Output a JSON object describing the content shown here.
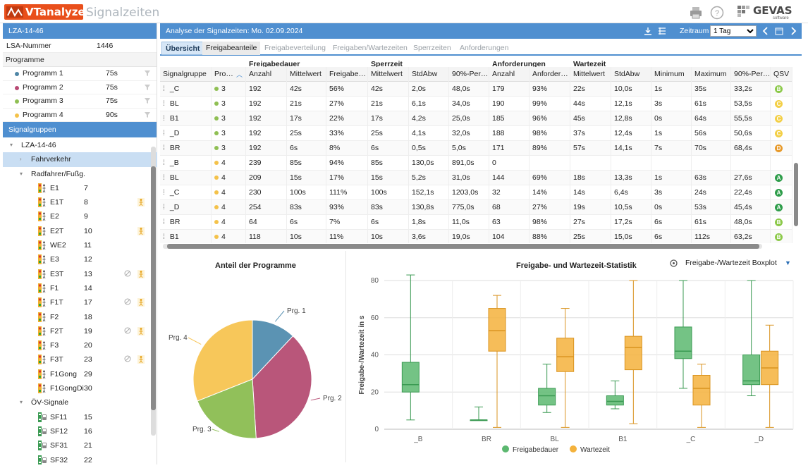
{
  "app": {
    "logo": "VTanalyzer",
    "subtitle": "Signalzeiten",
    "vendor": "GEVAS",
    "vendor_sub": "software",
    "icons": [
      "printer-icon",
      "help-icon"
    ]
  },
  "left": {
    "header": "LZA-14-46",
    "lsa_label": "LSA-Nummer",
    "lsa_value": "1446",
    "programs_header": "Programme",
    "programs": [
      {
        "name": "Programm 1",
        "value": "75s",
        "color": "#4f86a6"
      },
      {
        "name": "Programm 2",
        "value": "75s",
        "color": "#b84a74"
      },
      {
        "name": "Programm 3",
        "value": "75s",
        "color": "#8fbf53"
      },
      {
        "name": "Programm 4",
        "value": "90s",
        "color": "#f4c24a"
      }
    ],
    "groups_header": "Signalgruppen",
    "tree": [
      {
        "label": "LZA-14-46",
        "level": 0,
        "expand": "▾"
      },
      {
        "label": "Fahrverkehr",
        "level": 1,
        "expand": "›",
        "selected": true
      },
      {
        "label": "Radfahrer/Fußg.",
        "level": 1,
        "expand": "▾"
      },
      {
        "label": "E1",
        "num": "7",
        "level": 2,
        "icon": "ped"
      },
      {
        "label": "E1T",
        "num": "8",
        "level": 2,
        "icon": "ped",
        "x2": true
      },
      {
        "label": "E2",
        "num": "9",
        "level": 2,
        "icon": "ped"
      },
      {
        "label": "E2T",
        "num": "10",
        "level": 2,
        "icon": "ped",
        "x2": true
      },
      {
        "label": "WE2",
        "num": "11",
        "level": 2,
        "icon": "ped"
      },
      {
        "label": "E3",
        "num": "12",
        "level": 2,
        "icon": "ped"
      },
      {
        "label": "E3T",
        "num": "13",
        "level": 2,
        "icon": "ped",
        "x1": true,
        "x2": true
      },
      {
        "label": "F1",
        "num": "14",
        "level": 2,
        "icon": "ped"
      },
      {
        "label": "F1T",
        "num": "17",
        "level": 2,
        "icon": "ped",
        "x1": true,
        "x2": true
      },
      {
        "label": "F2",
        "num": "18",
        "level": 2,
        "icon": "ped"
      },
      {
        "label": "F2T",
        "num": "19",
        "level": 2,
        "icon": "ped",
        "x1": true,
        "x2": true
      },
      {
        "label": "F3",
        "num": "20",
        "level": 2,
        "icon": "ped"
      },
      {
        "label": "F3T",
        "num": "23",
        "level": 2,
        "icon": "ped",
        "x1": true,
        "x2": true
      },
      {
        "label": "F1Gong",
        "num": "29",
        "level": 2,
        "icon": "ped"
      },
      {
        "label": "F1GongDi",
        "num": "30",
        "level": 2,
        "icon": "ped"
      },
      {
        "label": "ÖV-Signale",
        "level": 1,
        "expand": "▾"
      },
      {
        "label": "SF11",
        "num": "15",
        "level": 2,
        "icon": "bus"
      },
      {
        "label": "SF12",
        "num": "16",
        "level": 2,
        "icon": "bus"
      },
      {
        "label": "SF31",
        "num": "21",
        "level": 2,
        "icon": "bus"
      },
      {
        "label": "SF32",
        "num": "22",
        "level": 2,
        "icon": "bus"
      }
    ]
  },
  "right": {
    "header": "Analyse der Signalzeiten: Mo. 02.09.2024",
    "zeitraum_label": "Zeitraum",
    "zeitraum_value": "1 Tag",
    "tabs": [
      "Übersicht",
      "Freigabeanteile",
      "Freigabeverteilung",
      "Freigaben/Wartezeiten",
      "Sperrzeiten",
      "Anforderungen"
    ],
    "group_headers": [
      "Freigabedauer",
      "Sperrzeit",
      "Anforderungen",
      "Wartezeit"
    ],
    "columns": [
      "Signalgruppe",
      "Pro…",
      "Anzahl",
      "Mittelwert",
      "Freigabe…",
      "Mittelwert",
      "StdAbw",
      "90%-Per…",
      "Anzahl",
      "Anforder…",
      "Mittelwert",
      "StdAbw",
      "Minimum",
      "Maximum",
      "90%-Per…",
      "QSV"
    ],
    "rows": [
      [
        "_C",
        "3",
        "192",
        "42s",
        "56%",
        "42s",
        "2,0s",
        "48,0s",
        "179",
        "93%",
        "22s",
        "10,0s",
        "1s",
        "35s",
        "33,2s",
        "B"
      ],
      [
        "BL",
        "3",
        "192",
        "21s",
        "27%",
        "21s",
        "6,1s",
        "34,0s",
        "190",
        "99%",
        "44s",
        "12,1s",
        "3s",
        "61s",
        "53,5s",
        "C"
      ],
      [
        "B1",
        "3",
        "192",
        "17s",
        "22%",
        "17s",
        "4,2s",
        "25,0s",
        "185",
        "96%",
        "45s",
        "12,8s",
        "0s",
        "64s",
        "55,5s",
        "C"
      ],
      [
        "_D",
        "3",
        "192",
        "25s",
        "33%",
        "25s",
        "4,1s",
        "32,0s",
        "188",
        "98%",
        "37s",
        "12,4s",
        "1s",
        "56s",
        "50,6s",
        "C"
      ],
      [
        "BR",
        "3",
        "192",
        "6s",
        "8%",
        "6s",
        "0,5s",
        "5,0s",
        "171",
        "89%",
        "57s",
        "14,1s",
        "7s",
        "70s",
        "68,4s",
        "D"
      ],
      [
        "_B",
        "4",
        "239",
        "85s",
        "94%",
        "85s",
        "130,0s",
        "891,0s",
        "0",
        "",
        "",
        "",
        "",
        "",
        "",
        ""
      ],
      [
        "BL",
        "4",
        "209",
        "15s",
        "17%",
        "15s",
        "5,2s",
        "31,0s",
        "144",
        "69%",
        "18s",
        "13,3s",
        "1s",
        "63s",
        "27,6s",
        "A"
      ],
      [
        "_C",
        "4",
        "230",
        "100s",
        "111%",
        "100s",
        "152,1s",
        "1203,0s",
        "32",
        "14%",
        "14s",
        "6,4s",
        "3s",
        "24s",
        "22,4s",
        "A"
      ],
      [
        "_D",
        "4",
        "254",
        "83s",
        "93%",
        "83s",
        "130,8s",
        "775,0s",
        "68",
        "27%",
        "19s",
        "10,5s",
        "0s",
        "53s",
        "45,4s",
        "A"
      ],
      [
        "BR",
        "4",
        "64",
        "6s",
        "7%",
        "6s",
        "1,8s",
        "11,0s",
        "63",
        "98%",
        "27s",
        "17,2s",
        "6s",
        "61s",
        "48,0s",
        "B"
      ],
      [
        "B1",
        "4",
        "118",
        "10s",
        "11%",
        "10s",
        "3,6s",
        "19,0s",
        "104",
        "88%",
        "25s",
        "15,0s",
        "6s",
        "112s",
        "63,2s",
        "B"
      ]
    ],
    "qsv_colors": {
      "A": "#2e9d4a",
      "B": "#8cc94a",
      "C": "#f3cf46",
      "D": "#e79a2b"
    }
  },
  "pie": {
    "title": "Anteil der Programme",
    "labels": [
      "Prg. 1",
      "Prg. 2",
      "Prg. 3",
      "Prg. 4"
    ]
  },
  "box": {
    "title": "Freigabe- und Wartezeit-Statistik",
    "dropdown": "Freigabe-/Wartezeit Boxplot",
    "ylabel": "Freigabe-/Wartezeit in s",
    "legend": [
      "Freigabedauer",
      "Wartezeit"
    ]
  },
  "chart_data": [
    {
      "type": "pie",
      "title": "Anteil der Programme",
      "categories": [
        "Prg. 1",
        "Prg. 2",
        "Prg. 3",
        "Prg. 4"
      ],
      "values": [
        12,
        37,
        20,
        31
      ],
      "colors": [
        "#5b93b3",
        "#b9567a",
        "#91c05a",
        "#f7c75a"
      ]
    },
    {
      "type": "box",
      "title": "Freigabe- und Wartezeit-Statistik",
      "ylabel": "Freigabe-/Wartezeit in s",
      "ylim": [
        0,
        80
      ],
      "yticks": [
        0,
        20,
        40,
        60,
        80
      ],
      "categories": [
        "_B",
        "BR",
        "BL",
        "B1",
        "_C",
        "_D"
      ],
      "series": [
        {
          "name": "Freigabedauer",
          "color": "#5cb870",
          "boxes": [
            [
              5,
              20,
              24,
              36,
              83
            ],
            [
              5,
              5,
              5,
              5,
              12
            ],
            [
              9,
              13,
              18,
              22,
              35
            ],
            [
              11,
              13,
              15,
              18,
              26
            ],
            [
              22,
              38,
              42,
              55,
              80
            ],
            [
              18,
              24,
              26,
              40,
              80
            ]
          ]
        },
        {
          "name": "Wartezeit",
          "color": "#f4b23c",
          "boxes": [
            null,
            [
              1,
              42,
              53,
              65,
              72
            ],
            [
              1,
              31,
              39,
              49,
              65
            ],
            [
              3,
              32,
              44,
              50,
              80
            ],
            [
              1,
              13,
              22,
              29,
              35
            ],
            [
              1,
              24,
              33,
              42,
              56
            ]
          ]
        }
      ],
      "grid": true,
      "legend": "bottom"
    }
  ]
}
